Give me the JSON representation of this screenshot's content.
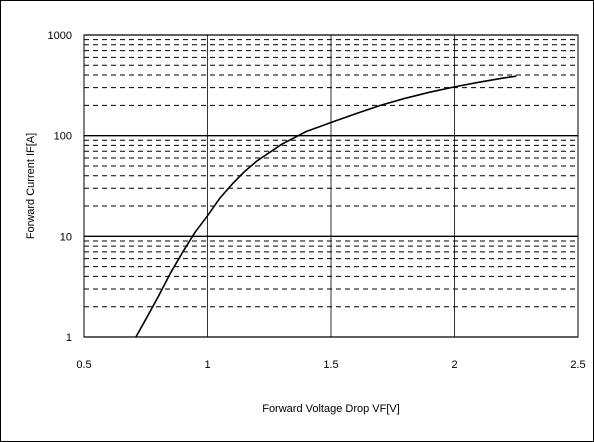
{
  "chart_data": {
    "type": "line",
    "title": "",
    "xlabel": "Forward Voltage Drop VF[V]",
    "ylabel": "Forward Current IF[A]",
    "xlim": [
      0.5,
      2.5
    ],
    "ylim": [
      1,
      1000
    ],
    "y_scale": "log",
    "x_ticks": [
      {
        "value": 0.5,
        "label": "0.5"
      },
      {
        "value": 1,
        "label": "1"
      },
      {
        "value": 1.5,
        "label": "1.5"
      },
      {
        "value": 2,
        "label": "2"
      },
      {
        "value": 2.5,
        "label": "2.5"
      }
    ],
    "y_ticks": [
      {
        "value": 1,
        "label": "1"
      },
      {
        "value": 10,
        "label": "10"
      },
      {
        "value": 100,
        "label": "100"
      },
      {
        "value": 1000,
        "label": "1000"
      }
    ],
    "grid": true,
    "series": [
      {
        "color": "#000000",
        "points": [
          {
            "x": 0.71,
            "y": 1.0
          },
          {
            "x": 0.75,
            "y": 1.5
          },
          {
            "x": 0.8,
            "y": 2.5
          },
          {
            "x": 0.85,
            "y": 4.3
          },
          {
            "x": 0.9,
            "y": 7.0
          },
          {
            "x": 0.95,
            "y": 11.0
          },
          {
            "x": 1.0,
            "y": 16.0
          },
          {
            "x": 1.05,
            "y": 24.0
          },
          {
            "x": 1.1,
            "y": 33.0
          },
          {
            "x": 1.15,
            "y": 44.0
          },
          {
            "x": 1.2,
            "y": 56.0
          },
          {
            "x": 1.3,
            "y": 82.0
          },
          {
            "x": 1.4,
            "y": 110.0
          },
          {
            "x": 1.5,
            "y": 135.0
          },
          {
            "x": 1.6,
            "y": 165.0
          },
          {
            "x": 1.7,
            "y": 200.0
          },
          {
            "x": 1.8,
            "y": 235.0
          },
          {
            "x": 1.9,
            "y": 270.0
          },
          {
            "x": 2.0,
            "y": 305.0
          },
          {
            "x": 2.1,
            "y": 340.0
          },
          {
            "x": 2.2,
            "y": 375.0
          },
          {
            "x": 2.25,
            "y": 390.0
          }
        ]
      }
    ]
  }
}
